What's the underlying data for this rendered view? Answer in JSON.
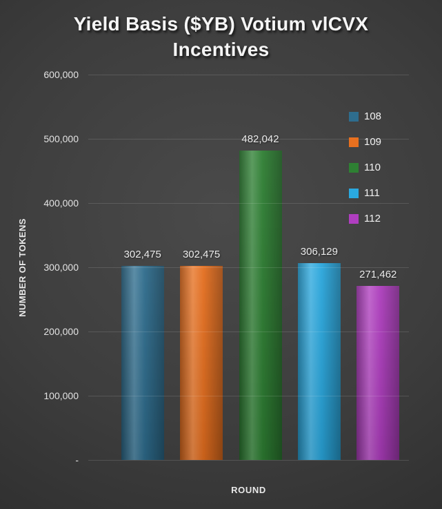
{
  "header": {
    "title_line1": "Yield Basis ($YB) Votium vlCVX",
    "title_line2": "Incentives"
  },
  "chart_data": {
    "type": "bar",
    "title": "Yield Basis ($YB) Votium vlCVX Incentives",
    "xlabel": "ROUND",
    "ylabel": "NUMBER OF TOKENS",
    "categories": [
      "108",
      "109",
      "110",
      "111",
      "112"
    ],
    "values": [
      302475,
      302475,
      482042,
      306129,
      271462
    ],
    "value_labels": [
      "302,475",
      "302,475",
      "482,042",
      "306,129",
      "271,462"
    ],
    "colors": [
      "#2e6d8e",
      "#e8701f",
      "#2e8033",
      "#2aa9e0",
      "#b03ec0"
    ],
    "ylim": [
      0,
      600000
    ],
    "ytick_interval": 100000,
    "yticks": [
      "600,000",
      "500,000",
      "400,000",
      "300,000",
      "200,000",
      "100,000",
      "-"
    ],
    "grid": true,
    "legend_position": "right-inside"
  }
}
